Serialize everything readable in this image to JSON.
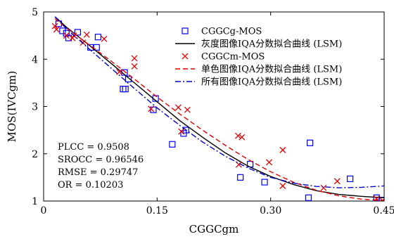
{
  "chart_data": {
    "type": "scatter",
    "xlabel": "CGGCgm",
    "ylabel": "MOS(IVCgm)",
    "xlim": [
      0,
      0.45
    ],
    "ylim": [
      1,
      5
    ],
    "xticks": [
      0,
      0.15,
      0.3,
      0.45
    ],
    "xtick_labels": [
      "0",
      "0.15",
      "0.30",
      "0.45"
    ],
    "yticks": [
      1,
      2,
      3,
      4,
      5
    ],
    "ytick_labels": [
      "1",
      "2",
      "3",
      "4",
      "5"
    ],
    "grid": false,
    "legend_position": "top-right",
    "series": [
      {
        "name": "CGGCg-MOS",
        "kind": "markers",
        "marker": "square",
        "color": "#0000ff",
        "points": [
          [
            0.02,
            4.75
          ],
          [
            0.025,
            4.6
          ],
          [
            0.03,
            4.55
          ],
          [
            0.033,
            4.45
          ],
          [
            0.045,
            4.57
          ],
          [
            0.062,
            4.25
          ],
          [
            0.07,
            4.25
          ],
          [
            0.072,
            4.47
          ],
          [
            0.105,
            3.37
          ],
          [
            0.108,
            3.37
          ],
          [
            0.107,
            3.72
          ],
          [
            0.112,
            3.58
          ],
          [
            0.145,
            2.93
          ],
          [
            0.148,
            3.17
          ],
          [
            0.17,
            2.2
          ],
          [
            0.185,
            2.43
          ],
          [
            0.188,
            2.5
          ],
          [
            0.26,
            1.5
          ],
          [
            0.273,
            1.78
          ],
          [
            0.292,
            1.4
          ],
          [
            0.35,
            1.07
          ],
          [
            0.352,
            2.23
          ],
          [
            0.405,
            1.47
          ],
          [
            0.44,
            1.07
          ],
          [
            0.447,
            1.02
          ]
        ]
      },
      {
        "name": "灰度图像IQA分数拟合曲线 (LSM)",
        "kind": "line",
        "dash": "solid",
        "color": "#000000",
        "points": [
          [
            0.015,
            4.9
          ],
          [
            0.03,
            4.68
          ],
          [
            0.06,
            4.3
          ],
          [
            0.09,
            3.9
          ],
          [
            0.12,
            3.5
          ],
          [
            0.15,
            3.1
          ],
          [
            0.18,
            2.7
          ],
          [
            0.21,
            2.35
          ],
          [
            0.24,
            2.02
          ],
          [
            0.27,
            1.74
          ],
          [
            0.3,
            1.52
          ],
          [
            0.33,
            1.35
          ],
          [
            0.36,
            1.22
          ],
          [
            0.39,
            1.14
          ],
          [
            0.42,
            1.1
          ],
          [
            0.45,
            1.07
          ]
        ]
      },
      {
        "name": "CGGCm-MOS",
        "kind": "markers",
        "marker": "x",
        "color": "#e60000",
        "points": [
          [
            0.015,
            4.7
          ],
          [
            0.017,
            4.63
          ],
          [
            0.03,
            4.5
          ],
          [
            0.038,
            4.45
          ],
          [
            0.04,
            4.5
          ],
          [
            0.052,
            4.35
          ],
          [
            0.057,
            4.52
          ],
          [
            0.08,
            4.43
          ],
          [
            0.1,
            3.73
          ],
          [
            0.12,
            4.02
          ],
          [
            0.12,
            3.85
          ],
          [
            0.142,
            2.95
          ],
          [
            0.178,
            2.98
          ],
          [
            0.182,
            2.47
          ],
          [
            0.19,
            2.93
          ],
          [
            0.257,
            2.38
          ],
          [
            0.262,
            2.35
          ],
          [
            0.258,
            1.77
          ],
          [
            0.298,
            1.82
          ],
          [
            0.316,
            2.08
          ],
          [
            0.316,
            1.32
          ],
          [
            0.37,
            1.28
          ],
          [
            0.388,
            1.42
          ],
          [
            0.44,
            1.05
          ],
          [
            0.448,
            1.01
          ]
        ]
      },
      {
        "name": "单色图像IQA分数拟合曲线 (LSM)",
        "kind": "line",
        "dash": "dashed",
        "color": "#e60000",
        "points": [
          [
            0.015,
            4.86
          ],
          [
            0.03,
            4.66
          ],
          [
            0.06,
            4.31
          ],
          [
            0.09,
            3.95
          ],
          [
            0.12,
            3.58
          ],
          [
            0.15,
            3.2
          ],
          [
            0.18,
            2.84
          ],
          [
            0.21,
            2.5
          ],
          [
            0.24,
            2.18
          ],
          [
            0.27,
            1.88
          ],
          [
            0.3,
            1.62
          ],
          [
            0.33,
            1.4
          ],
          [
            0.36,
            1.23
          ],
          [
            0.39,
            1.11
          ],
          [
            0.42,
            1.04
          ],
          [
            0.45,
            1.01
          ]
        ]
      },
      {
        "name": "所有图像IQA分数拟合曲线 (LSM)",
        "kind": "line",
        "dash": "dashdot",
        "color": "#0000cc",
        "points": [
          [
            0.015,
            4.9
          ],
          [
            0.03,
            4.65
          ],
          [
            0.06,
            4.22
          ],
          [
            0.09,
            3.8
          ],
          [
            0.12,
            3.38
          ],
          [
            0.15,
            2.97
          ],
          [
            0.18,
            2.6
          ],
          [
            0.21,
            2.25
          ],
          [
            0.24,
            1.95
          ],
          [
            0.27,
            1.7
          ],
          [
            0.3,
            1.5
          ],
          [
            0.33,
            1.38
          ],
          [
            0.36,
            1.31
          ],
          [
            0.39,
            1.28
          ],
          [
            0.42,
            1.29
          ],
          [
            0.45,
            1.32
          ]
        ]
      }
    ],
    "annotations": [
      "PLCC = 0.9508",
      "SROCC = 0.96546",
      "RMSE = 0.29747",
      "OR = 0.10203"
    ]
  }
}
